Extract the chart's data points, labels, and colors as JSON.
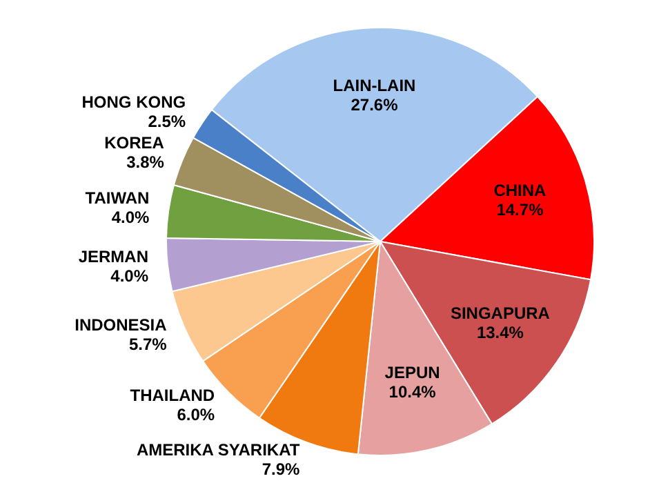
{
  "chart_data": {
    "type": "pie",
    "categories": [
      "LAIN-LAIN",
      "CHINA",
      "SINGAPURA",
      "JEPUN",
      "AMERIKA SYARIKAT",
      "THAILAND",
      "INDONESIA",
      "JERMAN",
      "TAIWAN",
      "KOREA",
      "HONG KONG"
    ],
    "values": [
      27.6,
      14.7,
      13.4,
      10.4,
      7.9,
      6.0,
      5.7,
      4.0,
      4.0,
      3.8,
      2.5
    ],
    "colors": [
      "#a6c8f0",
      "#ff0000",
      "#cd5050",
      "#e6a0a0",
      "#f07a10",
      "#f9a050",
      "#fcc890",
      "#b4a0d0",
      "#70a040",
      "#a09060",
      "#4a80c8"
    ],
    "value_labels": [
      "27.6%",
      "14.7%",
      "13.4%",
      "10.4%",
      "7.9%",
      "6.0%",
      "5.7%",
      "4.0%",
      "4.0%",
      "3.8%",
      "2.5%"
    ],
    "legend": false
  }
}
